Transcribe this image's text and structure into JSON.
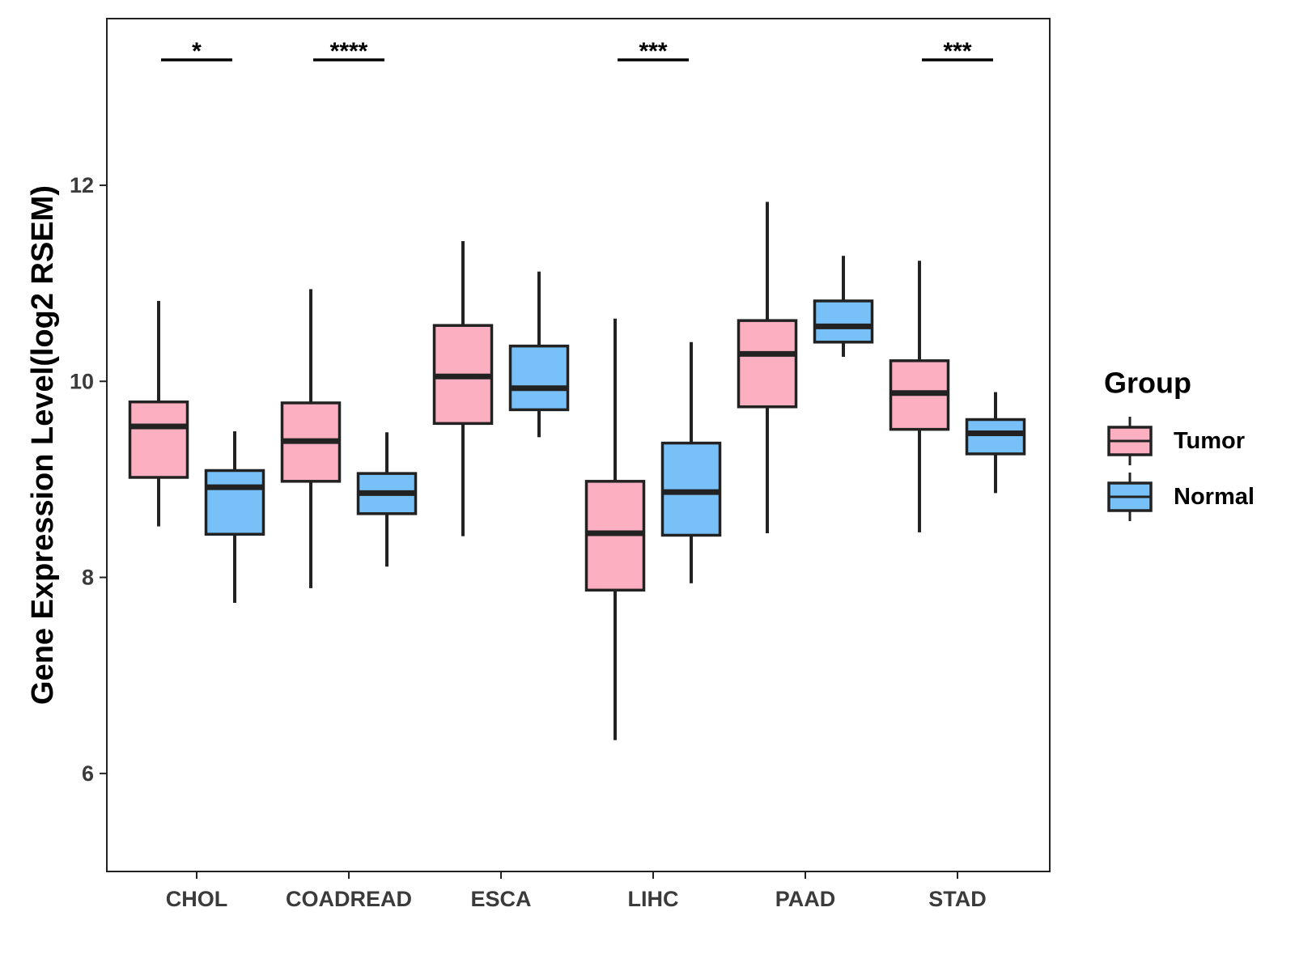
{
  "chart_data": {
    "type": "boxplot",
    "title": "",
    "xlabel": "",
    "ylabel": "Gene Expression Level(log2 RSEM)",
    "ylim": [
      5.0,
      13.7
    ],
    "yticks": [
      6,
      8,
      10,
      12
    ],
    "grid": false,
    "legend": {
      "title": "Group",
      "position": "right",
      "entries": [
        {
          "name": "Tumor",
          "color": "#FBAFC1"
        },
        {
          "name": "Normal",
          "color": "#78C1F8"
        }
      ]
    },
    "categories": [
      "CHOL",
      "COADREAD",
      "ESCA",
      "LIHC",
      "PAAD",
      "STAD"
    ],
    "series": [
      {
        "name": "Tumor",
        "color": "#FBAFC1",
        "boxes": [
          {
            "min": 8.52,
            "q1": 9.02,
            "median": 9.54,
            "q3": 9.79,
            "max": 10.82
          },
          {
            "min": 7.89,
            "q1": 8.98,
            "median": 9.39,
            "q3": 9.78,
            "max": 10.94
          },
          {
            "min": 8.42,
            "q1": 9.57,
            "median": 10.05,
            "q3": 10.57,
            "max": 11.43
          },
          {
            "min": 6.34,
            "q1": 7.87,
            "median": 8.45,
            "q3": 8.98,
            "max": 10.64
          },
          {
            "min": 8.45,
            "q1": 9.74,
            "median": 10.28,
            "q3": 10.62,
            "max": 11.83
          },
          {
            "min": 8.46,
            "q1": 9.51,
            "median": 9.88,
            "q3": 10.21,
            "max": 11.23
          }
        ]
      },
      {
        "name": "Normal",
        "color": "#78C1F8",
        "boxes": [
          {
            "min": 7.74,
            "q1": 8.44,
            "median": 8.92,
            "q3": 9.09,
            "max": 9.49
          },
          {
            "min": 8.11,
            "q1": 8.65,
            "median": 8.86,
            "q3": 9.06,
            "max": 9.48
          },
          {
            "min": 9.43,
            "q1": 9.71,
            "median": 9.93,
            "q3": 10.36,
            "max": 11.12
          },
          {
            "min": 7.94,
            "q1": 8.43,
            "median": 8.87,
            "q3": 9.37,
            "max": 10.4
          },
          {
            "min": 10.25,
            "q1": 10.4,
            "median": 10.56,
            "q3": 10.82,
            "max": 11.28
          },
          {
            "min": 8.86,
            "q1": 9.26,
            "median": 9.47,
            "q3": 9.61,
            "max": 9.89
          }
        ]
      }
    ],
    "significance": [
      "*",
      "****",
      "",
      "***",
      "",
      "***"
    ],
    "colors": {
      "box_stroke": "#222222",
      "axis": "#222222",
      "tick_text": "#3b3b3b"
    }
  }
}
